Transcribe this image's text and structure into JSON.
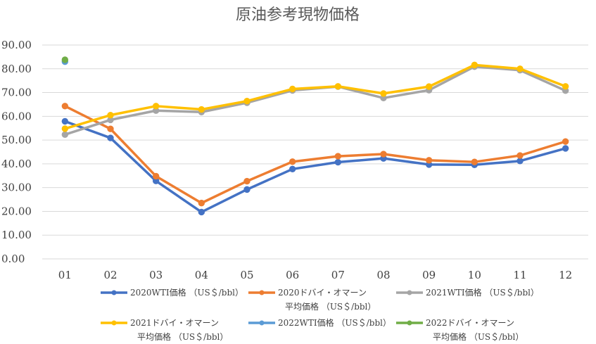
{
  "chart_data": {
    "type": "line",
    "title": "原油参考現物価格",
    "categories": [
      "01",
      "02",
      "03",
      "04",
      "05",
      "06",
      "07",
      "08",
      "09",
      "10",
      "11",
      "12"
    ],
    "ylim": [
      0,
      90
    ],
    "y_ticks": [
      "0.00",
      "10.00",
      "20.00",
      "30.00",
      "40.00",
      "50.00",
      "60.00",
      "70.00",
      "80.00",
      "90.00"
    ],
    "grid": true,
    "legend_position": "bottom",
    "series": [
      {
        "name": "2020WTI価格 （US＄/bbl）",
        "name_lines": [
          "2020WTI価格 （US＄/bbl）"
        ],
        "color": "#4472c4",
        "values": [
          57.9,
          50.9,
          32.8,
          19.7,
          29.2,
          37.8,
          40.7,
          42.3,
          39.7,
          39.6,
          41.2,
          46.5
        ]
      },
      {
        "name": "2020ドバイ・オマーン平均価格 （US＄/bbl）",
        "name_lines": [
          "2020ドバイ・オマーン",
          "平均価格 （US＄/bbl）"
        ],
        "color": "#ed7d31",
        "values": [
          64.3,
          54.7,
          34.8,
          23.5,
          32.7,
          40.9,
          43.2,
          44.1,
          41.5,
          40.8,
          43.5,
          49.4
        ]
      },
      {
        "name": "2021WTI価格 （US＄/bbl）",
        "name_lines": [
          "2021WTI価格 （US＄/bbl）"
        ],
        "color": "#a5a5a5",
        "values": [
          52.3,
          58.5,
          62.4,
          61.8,
          65.7,
          70.9,
          72.5,
          67.7,
          71.0,
          80.9,
          79.4,
          70.8
        ]
      },
      {
        "name": "2021ドバイ・オマーン平均価格 （US＄/bbl）",
        "name_lines": [
          "2021ドバイ・オマーン",
          "平均価格 （US＄/bbl）"
        ],
        "color": "#ffc000",
        "values": [
          54.8,
          60.5,
          64.3,
          62.9,
          66.4,
          71.5,
          72.6,
          69.6,
          72.5,
          81.6,
          80.0,
          72.6
        ]
      },
      {
        "name": "2022WTI価格 （US＄/bbl）",
        "name_lines": [
          "2022WTI価格 （US＄/bbl）"
        ],
        "color": "#5b9bd5",
        "values": [
          83.0,
          null,
          null,
          null,
          null,
          null,
          null,
          null,
          null,
          null,
          null,
          null
        ]
      },
      {
        "name": "2022ドバイ・オマーン平均価格 （US＄/bbl）",
        "name_lines": [
          "2022ドバイ・オマーン",
          "平均価格 （US＄/bbl）"
        ],
        "color": "#70ad47",
        "values": [
          83.8,
          null,
          null,
          null,
          null,
          null,
          null,
          null,
          null,
          null,
          null,
          null
        ]
      }
    ]
  }
}
